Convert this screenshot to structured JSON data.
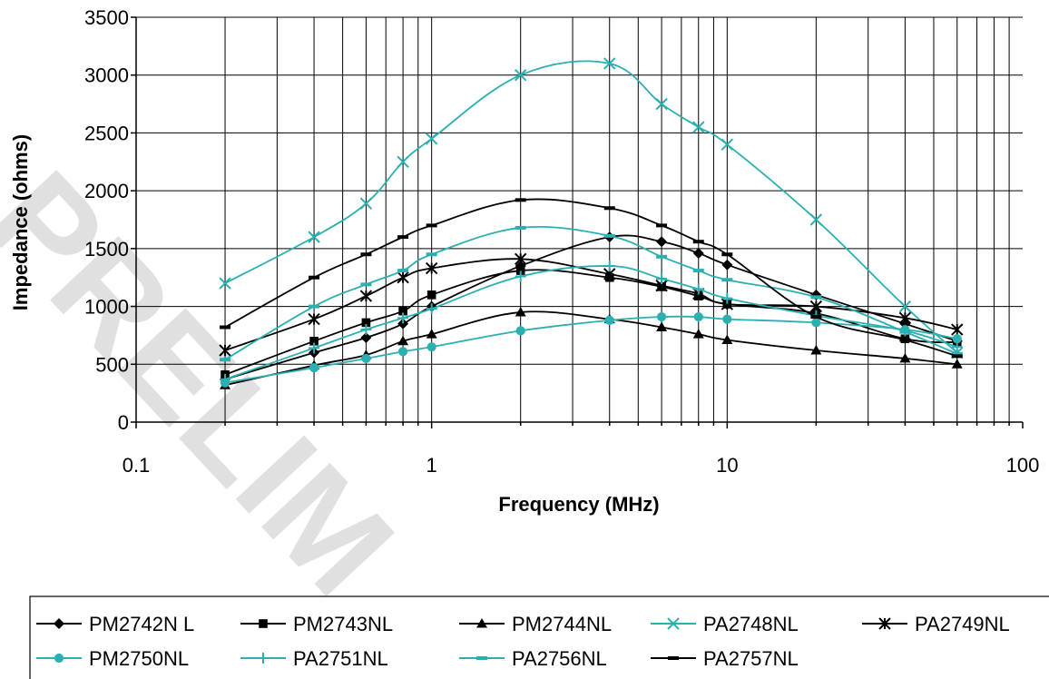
{
  "watermark": "PRELIM",
  "chart_data": {
    "type": "line",
    "title": "",
    "xlabel": "Frequency (MHz)",
    "ylabel": "Impedance (ohms)",
    "xscale": "log",
    "xlim": [
      0.1,
      100
    ],
    "ylim": [
      0,
      3500
    ],
    "x_ticks": [
      "0.1",
      "1",
      "10",
      "100"
    ],
    "y_ticks": [
      "0",
      "500",
      "1000",
      "1500",
      "2000",
      "2500",
      "3000",
      "3500"
    ],
    "grid": true,
    "legend_position": "bottom",
    "x": [
      0.2,
      0.4,
      0.6,
      0.8,
      1,
      2,
      4,
      6,
      8,
      10,
      20,
      40,
      60
    ],
    "series": [
      {
        "name": "PM2742N L",
        "color": "#000000",
        "marker": "diamond",
        "values": [
          370,
          600,
          730,
          850,
          1000,
          1350,
          1600,
          1560,
          1460,
          1360,
          1100,
          850,
          700
        ]
      },
      {
        "name": "PM2743NL",
        "color": "#000000",
        "marker": "square",
        "values": [
          410,
          700,
          860,
          960,
          1100,
          1310,
          1250,
          1170,
          1090,
          1020,
          940,
          720,
          690
        ]
      },
      {
        "name": "PM2744NL",
        "color": "#000000",
        "marker": "triangle",
        "values": [
          320,
          490,
          580,
          700,
          760,
          950,
          890,
          820,
          760,
          710,
          620,
          550,
          500
        ]
      },
      {
        "name": "PA2748NL",
        "color": "#2ab0b0",
        "marker": "x",
        "values": [
          1200,
          1600,
          1890,
          2250,
          2450,
          3000,
          3100,
          2750,
          2550,
          2400,
          1750,
          1000,
          600
        ]
      },
      {
        "name": "PA2749NL",
        "color": "#000000",
        "marker": "asterisk",
        "values": [
          620,
          890,
          1090,
          1250,
          1330,
          1410,
          1280,
          1180,
          1110,
          1020,
          1000,
          900,
          800
        ]
      },
      {
        "name": "PM2750NL",
        "color": "#2ab0b0",
        "marker": "circle",
        "values": [
          340,
          470,
          550,
          610,
          650,
          790,
          880,
          910,
          910,
          890,
          860,
          800,
          720
        ]
      },
      {
        "name": "PA2751NL",
        "color": "#2ab0b0",
        "marker": "plus",
        "values": [
          370,
          640,
          800,
          900,
          980,
          1260,
          1350,
          1240,
          1150,
          1070,
          920,
          790,
          650
        ]
      },
      {
        "name": "PA2756NL",
        "color": "#2ab0b0",
        "marker": "dash",
        "values": [
          540,
          1000,
          1190,
          1310,
          1450,
          1680,
          1610,
          1430,
          1310,
          1230,
          1080,
          780,
          590
        ]
      },
      {
        "name": "PA2757NL",
        "color": "#000000",
        "marker": "dash",
        "values": [
          820,
          1250,
          1450,
          1600,
          1700,
          1920,
          1850,
          1700,
          1560,
          1450,
          910,
          710,
          570
        ]
      }
    ]
  }
}
